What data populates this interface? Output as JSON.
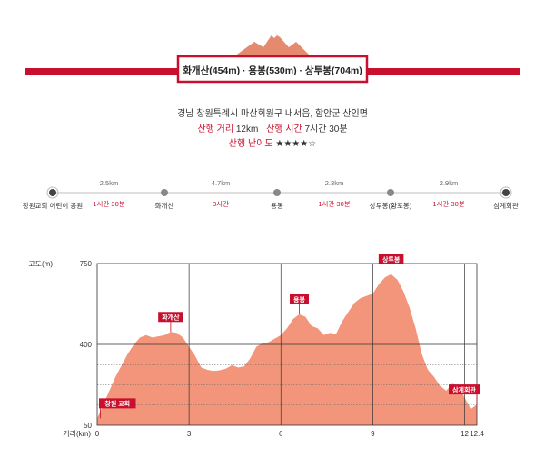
{
  "title": "화개산(454m) · 용봉(530m) · 상투봉(704m)",
  "info": {
    "location": "경남 창원특례시 마산회원구 내서읍, 함안군 산인면",
    "distance_label": "산행 거리",
    "distance_value": "12km",
    "time_label": "산행 시간",
    "time_value": "7시간 30분",
    "difficulty_label": "산행 난이도",
    "difficulty_value": "★★★★☆"
  },
  "route": {
    "stops": [
      "창원교회 어린이 공원",
      "화개산",
      "용봉",
      "상투봉(황포봉)",
      "삼계회관"
    ],
    "segments": [
      {
        "distance": "2.5km",
        "time": "1시간 30분"
      },
      {
        "distance": "4.7km",
        "time": "3시간"
      },
      {
        "distance": "2.3km",
        "time": "1시간 30분"
      },
      {
        "distance": "2.9km",
        "time": "1시간 30분"
      }
    ]
  },
  "colors": {
    "accent": "#c8102e",
    "profile_fill": "#f2957b",
    "peak_icon": "#e58a6e",
    "route_line": "#cccccc",
    "stop_dot": "#888888"
  },
  "chart_data": {
    "type": "area",
    "title": "",
    "xlabel": "거리(km)",
    "ylabel": "고도(m)",
    "xlim": [
      0,
      12.4
    ],
    "ylim": [
      50,
      750
    ],
    "x_ticks": [
      0,
      3,
      6,
      9,
      12,
      12.4
    ],
    "y_ticks": [
      50,
      400,
      750
    ],
    "grid": true,
    "series": [
      {
        "x": [
          0,
          0.2,
          0.4,
          0.6,
          0.8,
          1.0,
          1.2,
          1.4,
          1.6,
          1.8,
          2.0,
          2.2,
          2.4,
          2.6,
          2.8,
          3.0,
          3.2,
          3.4,
          3.6,
          3.8,
          4.0,
          4.2,
          4.4,
          4.6,
          4.8,
          5.0,
          5.2,
          5.4,
          5.6,
          5.8,
          6.0,
          6.2,
          6.4,
          6.6,
          6.8,
          7.0,
          7.2,
          7.4,
          7.6,
          7.8,
          8.0,
          8.2,
          8.4,
          8.6,
          8.8,
          9.0,
          9.2,
          9.4,
          9.6,
          9.8,
          10.0,
          10.2,
          10.4,
          10.6,
          10.8,
          11.0,
          11.2,
          11.4,
          11.6,
          11.8,
          12.0,
          12.2,
          12.4
        ],
        "y": [
          80,
          140,
          200,
          260,
          310,
          360,
          400,
          430,
          440,
          430,
          435,
          440,
          454,
          450,
          430,
          390,
          350,
          300,
          290,
          285,
          288,
          295,
          310,
          300,
          305,
          340,
          390,
          405,
          410,
          425,
          440,
          470,
          510,
          530,
          520,
          480,
          470,
          440,
          450,
          445,
          500,
          540,
          580,
          600,
          610,
          620,
          660,
          690,
          704,
          680,
          630,
          560,
          470,
          360,
          290,
          260,
          220,
          200,
          230,
          220,
          170,
          120,
          140
        ]
      }
    ],
    "annotations": [
      {
        "text": "창원 교회",
        "x": 0.1,
        "y": 80
      },
      {
        "text": "화개산",
        "x": 2.4,
        "y": 454
      },
      {
        "text": "용봉",
        "x": 6.6,
        "y": 530
      },
      {
        "text": "상투봉",
        "x": 9.6,
        "y": 704
      },
      {
        "text": "삼계회관",
        "x": 12.4,
        "y": 140
      }
    ]
  }
}
